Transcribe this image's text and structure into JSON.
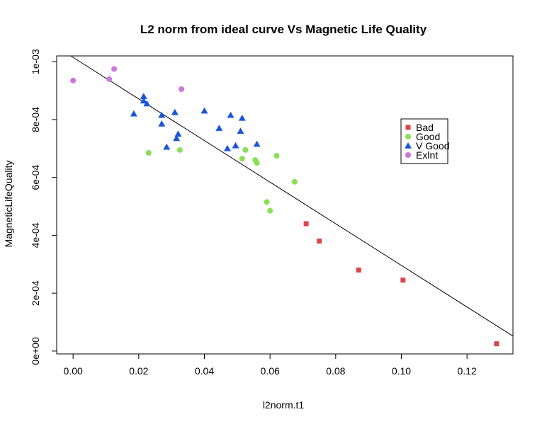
{
  "chart_data": {
    "type": "scatter",
    "title": "L2 norm from ideal curve Vs Magnetic Life Quality",
    "xlabel": "l2norm.t1",
    "ylabel": "MagneticLifeQuality",
    "xlim": [
      -0.005,
      0.134
    ],
    "ylim": [
      -1e-05,
      0.00102
    ],
    "x_ticks": [
      0.0,
      0.02,
      0.04,
      0.06,
      0.08,
      0.1,
      0.12
    ],
    "x_tick_labels": [
      "0.00",
      "0.02",
      "0.04",
      "0.06",
      "0.08",
      "0.10",
      "0.12"
    ],
    "y_ticks": [
      0,
      0.0002,
      0.0004,
      0.0006,
      0.0008,
      0.001
    ],
    "y_tick_labels": [
      "0e+00",
      "2e-04",
      "4e-04",
      "6e-04",
      "8e-04",
      "1e-03"
    ],
    "grid": false,
    "legend_position": "right-upper",
    "series": [
      {
        "name": "Bad",
        "color": "#dd4444",
        "marker": "square",
        "points": [
          [
            0.071,
            0.00044
          ],
          [
            0.075,
            0.00038
          ],
          [
            0.087,
            0.00028
          ],
          [
            0.1005,
            0.000245
          ],
          [
            0.129,
            2.5e-05
          ]
        ]
      },
      {
        "name": "Good",
        "color": "#88e055",
        "marker": "circle",
        "points": [
          [
            0.023,
            0.000685
          ],
          [
            0.0325,
            0.000695
          ],
          [
            0.0515,
            0.000665
          ],
          [
            0.0525,
            0.000695
          ],
          [
            0.0555,
            0.00066
          ],
          [
            0.056,
            0.00065
          ],
          [
            0.062,
            0.000675
          ],
          [
            0.0675,
            0.000585
          ],
          [
            0.059,
            0.000515
          ],
          [
            0.06,
            0.000485
          ]
        ]
      },
      {
        "name": "V Good",
        "color": "#1a55dd",
        "marker": "triangle",
        "points": [
          [
            0.0185,
            0.00082
          ],
          [
            0.0215,
            0.00088
          ],
          [
            0.0215,
            0.000865
          ],
          [
            0.0225,
            0.000855
          ],
          [
            0.027,
            0.000815
          ],
          [
            0.027,
            0.000785
          ],
          [
            0.0285,
            0.000705
          ],
          [
            0.031,
            0.000825
          ],
          [
            0.0315,
            0.000735
          ],
          [
            0.032,
            0.00075
          ],
          [
            0.04,
            0.00083
          ],
          [
            0.0445,
            0.00077
          ],
          [
            0.047,
            0.0007
          ],
          [
            0.048,
            0.000815
          ],
          [
            0.0495,
            0.00071
          ],
          [
            0.051,
            0.00076
          ],
          [
            0.0515,
            0.000805
          ],
          [
            0.056,
            0.000715
          ]
        ]
      },
      {
        "name": "Exlnt",
        "color": "#cc77dd",
        "marker": "circle",
        "points": [
          [
            0.0,
            0.000935
          ],
          [
            0.011,
            0.00094
          ],
          [
            0.0125,
            0.000975
          ],
          [
            0.033,
            0.000905
          ]
        ]
      }
    ],
    "fit_line": {
      "intercept": 0.001015,
      "slope": -0.00719,
      "color": "#000000"
    }
  }
}
